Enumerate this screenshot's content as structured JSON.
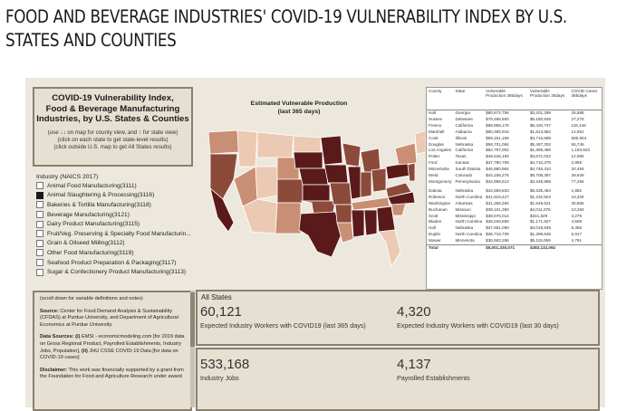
{
  "page_title": "FOOD AND BEVERAGE INDUSTRIES' COVID-19 VULNERABILITY INDEX BY U.S. STATES AND COUNTIES",
  "info_box": {
    "title_lines": [
      "COVID-19 Vulnerability Index,",
      "Food & Beverage Manufacturing",
      "Industries, by U.S. States & Counties"
    ],
    "hints": [
      "(use ↓↓ on map for county view, and ↑ for state view)",
      "(click on each state to get state-level results)",
      "(click outside U.S. map to get All States results)"
    ]
  },
  "filter": {
    "heading": "Industry (NAICS 2017)",
    "items": [
      {
        "label": "Animal Food Manufacturing(3111)",
        "checked": false
      },
      {
        "label": "Animal Slaughtering & Processing(3116)",
        "checked": true
      },
      {
        "label": "Bakeries & Tortilla Manufacturing(3118)",
        "checked": false
      },
      {
        "label": "Beverage Manufacturing(3121)",
        "checked": false
      },
      {
        "label": "Dairy Product Manufacturing(3115)",
        "checked": false
      },
      {
        "label": "Fruit/Veg. Preserving & Specialty Food Manufacturin...",
        "checked": false
      },
      {
        "label": "Grain & Oilseed Milling(3112)",
        "checked": false
      },
      {
        "label": "Other Food Manufacturing(3119)",
        "checked": false
      },
      {
        "label": "Seafood Product Preparation & Packaging(3117)",
        "checked": false
      },
      {
        "label": "Sugar & Confectionery Product Manufacturing(3113)",
        "checked": false
      }
    ]
  },
  "map": {
    "title_lines": [
      "Estimated Vulnerable Production",
      "(last 365 days)"
    ],
    "colors": {
      "dark": "#5a1a1a",
      "medium": "#8c4a3a",
      "light": "#c98f74",
      "pale": "#ecc9b2"
    }
  },
  "table": {
    "headers": [
      "County",
      "State",
      "Vulnerable Production 365days",
      "Vulnerable Production 30days",
      "COVID Cases 365days"
    ],
    "rows": [
      [
        "Hall",
        "Georgia",
        "$80,672,756",
        "$3,201,299",
        "26,588"
      ],
      [
        "Sussex",
        "Delaware",
        "$75,466,500",
        "$5,180,548",
        "27,275"
      ],
      [
        "Fresno",
        "California",
        "$69,888,178",
        "$5,430,747",
        "118,146"
      ],
      [
        "Marshall",
        "Alabama",
        "$60,480,916",
        "$1,813,852",
        "12,951"
      ],
      [
        "Cook",
        "Illinois",
        "$59,161,169",
        "$4,716,689",
        "585,904"
      ],
      [
        "Douglas",
        "Nebraska",
        "$56,701,084",
        "$5,487,202",
        "55,746"
      ],
      [
        "Los Angeles",
        "California",
        "$52,797,002",
        "$1,699,489",
        "1,193,923"
      ],
      [
        "Potter",
        "Texas",
        "$49,546,194",
        "$4,671,022",
        "12,965"
      ],
      [
        "Ford",
        "Kansas",
        "$47,790,709",
        "$4,710,378",
        "2,959"
      ],
      [
        "Minnehaha",
        "South Dakota",
        "$45,880,964",
        "$4,746,310",
        "20,494"
      ],
      [
        "Weld",
        "Colorado",
        "$44,156,276",
        "$6,708,397",
        "39,649"
      ],
      [
        "Montgomery",
        "Pennsylvania",
        "$42,969,513",
        "$3,248,969",
        "77,294"
      ],
      [
        "",
        "",
        "",
        "",
        ""
      ],
      [
        "Dakota",
        "Nebraska",
        "$42,859,833",
        "$5,535,484",
        "1,882"
      ],
      [
        "Robeson",
        "North Carolina",
        "$41,919,427",
        "$1,232,924",
        "18,334"
      ],
      [
        "Washington",
        "Arkansas",
        "$41,256,294",
        "$1,549,621",
        "30,855"
      ],
      [
        "Buchanan",
        "Missouri",
        "$39,161,390",
        "$4,011,076",
        "10,293"
      ],
      [
        "Scott",
        "Mississippi",
        "$38,576,014",
        "$341,629",
        "3,279"
      ],
      [
        "Bladen",
        "North Carolina",
        "$38,048,559",
        "$1,171,927",
        "4,509"
      ],
      [
        "Hall",
        "Nebraska",
        "$37,861,090",
        "$4,019,849",
        "6,356"
      ],
      [
        "Duplin",
        "North Carolina",
        "$36,718,709",
        "$1,299,648",
        "6,917"
      ],
      [
        "Mower",
        "Minnesota",
        "$36,563,266",
        "$5,115,069",
        "4,791"
      ]
    ],
    "total": [
      "Total",
      "",
      "$5,001,330,071",
      "$383,132,092",
      ""
    ]
  },
  "notes": {
    "scroll_hint": "(scroll down for variable definitions and notes)",
    "source_label": "Source:",
    "source_text": " Center for Food Demand Analysis & Sustainability (CFDAS) at Purdue University, and Department of Agricultural Economics at Purdue University.",
    "data_sources_label": "Data Sources: (i)",
    "data_sources_text": " EMSI - economicmodeling.com [for 2019 data on Gross Regional Product, Payrolled Establishments, Industry Jobs, Population], ",
    "data_sources_label2": "(ii)",
    "data_sources_text2": " JHU CSSE COVID-19 Data [for data on COVID-19 cases]",
    "disclaimer_label": "Disclaimer:",
    "disclaimer_text": " This work was financially supported by a grant from the Foundation for Food and Agriculture Research under award"
  },
  "kpis": {
    "heading": "All States",
    "workers_365": "60,121",
    "workers_365_label": "Expected Industry Workers with COVID19 (last 365 days)",
    "workers_30": "4,320",
    "workers_30_label": "Expected Industry Workers with COVID19 (last 30 days)",
    "jobs": "533,168",
    "jobs_label": "Industry Jobs",
    "establishments": "4,137",
    "establishments_label": "Payrolled Establishments"
  }
}
